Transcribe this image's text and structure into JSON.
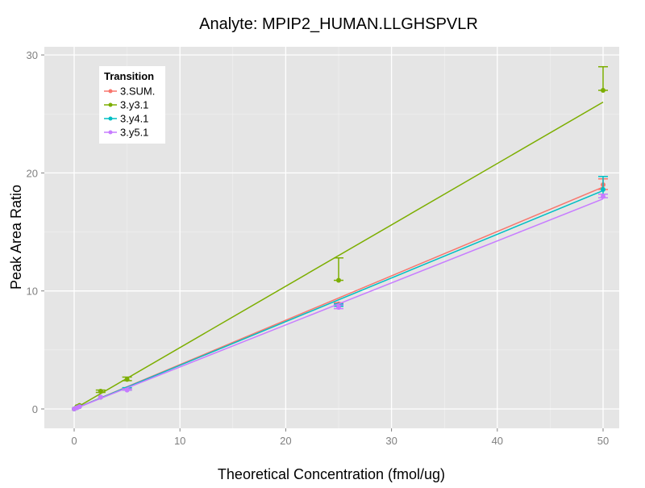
{
  "chart_data": {
    "type": "scatter",
    "title": "Analyte: MPIP2_HUMAN.LLGHSPVLR",
    "xlabel": "Theoretical Concentration (fmol/ug)",
    "ylabel": "Peak Area Ratio",
    "xlim": [
      -2.8,
      51.5
    ],
    "ylim": [
      -1.5,
      30.5
    ],
    "xticks": [
      0,
      10,
      20,
      30,
      40,
      50
    ],
    "yticks": [
      0,
      10,
      20,
      30
    ],
    "grid": true,
    "legend": {
      "title": "Transition",
      "position": "top-left"
    },
    "series": [
      {
        "name": "3.SUM.",
        "color": "#F8766D",
        "x": [
          0,
          0.25,
          0.5,
          2.5,
          5,
          25,
          50
        ],
        "y": [
          0,
          0.1,
          0.2,
          1.0,
          1.7,
          8.9,
          19.0
        ],
        "ymin": [
          0,
          0.1,
          0.2,
          1.0,
          1.6,
          8.8,
          18.6
        ],
        "ymax": [
          0,
          0.1,
          0.2,
          1.0,
          1.8,
          9.0,
          19.5
        ],
        "fit": {
          "slope": 0.376,
          "intercept": 0
        }
      },
      {
        "name": "3.y3.1",
        "color": "#7CAE00",
        "x": [
          0,
          0.25,
          0.5,
          2.5,
          5,
          25,
          50
        ],
        "y": [
          0,
          0.2,
          0.3,
          1.5,
          2.5,
          10.9,
          27.0
        ],
        "ymin": [
          0,
          0.2,
          0.3,
          1.4,
          2.4,
          10.9,
          27.0
        ],
        "ymax": [
          0,
          0.2,
          0.3,
          1.6,
          2.7,
          12.8,
          29.0
        ],
        "fit": {
          "slope": 0.52,
          "intercept": 0
        }
      },
      {
        "name": "3.y4.1",
        "color": "#00BFC4",
        "x": [
          0,
          0.25,
          0.5,
          2.5,
          5,
          25,
          50
        ],
        "y": [
          0,
          0.1,
          0.2,
          1.0,
          1.7,
          8.8,
          18.6
        ],
        "ymin": [
          0,
          0.1,
          0.2,
          1.0,
          1.6,
          8.7,
          18.2
        ],
        "ymax": [
          0,
          0.1,
          0.2,
          1.0,
          1.8,
          8.9,
          19.7
        ],
        "fit": {
          "slope": 0.37,
          "intercept": 0
        }
      },
      {
        "name": "3.y5.1",
        "color": "#C77CFF",
        "x": [
          0,
          0.25,
          0.5,
          2.5,
          5,
          25,
          50
        ],
        "y": [
          0,
          0.1,
          0.2,
          1.0,
          1.6,
          8.6,
          18.0
        ],
        "ymin": [
          0,
          0.1,
          0.2,
          1.0,
          1.6,
          8.5,
          17.9
        ],
        "ymax": [
          0,
          0.1,
          0.2,
          1.0,
          1.7,
          8.8,
          18.2
        ],
        "fit": {
          "slope": 0.356,
          "intercept": 0
        }
      }
    ]
  }
}
